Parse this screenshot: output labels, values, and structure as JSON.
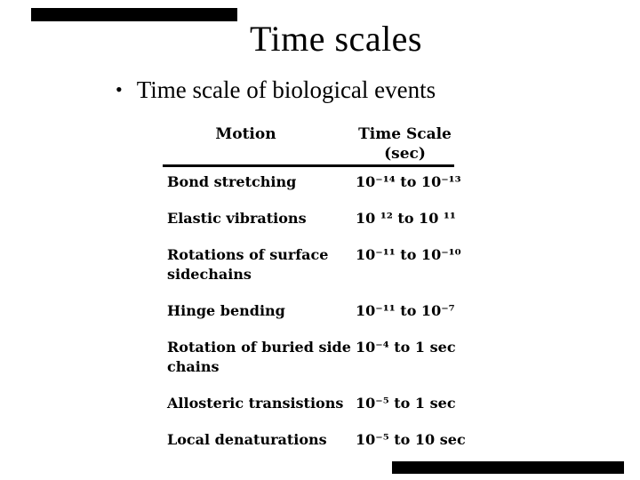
{
  "slide": {
    "title": "Time scales",
    "bullet_glyph": "•",
    "bullet_text": "Time scale of biological events"
  },
  "table": {
    "headers": {
      "motion": "Motion",
      "time_scale_line1": "Time Scale",
      "time_scale_line2": "(sec)"
    },
    "rows": [
      {
        "motion": "Bond stretching",
        "time": "10⁻¹⁴ to 10⁻¹³"
      },
      {
        "motion": "Elastic vibrations",
        "time": "10 ¹² to 10 ¹¹"
      },
      {
        "motion": "Rotations of surface sidechains",
        "time": "10⁻¹¹ to 10⁻¹⁰"
      },
      {
        "motion": "Hinge bending",
        "time": "10⁻¹¹ to 10⁻⁷"
      },
      {
        "motion": "Rotation of buried side chains",
        "time": "10⁻⁴ to 1 sec"
      },
      {
        "motion": "Allosteric transistions",
        "time": "10⁻⁵ to 1 sec"
      },
      {
        "motion": "Local denaturations",
        "time": "10⁻⁵ to 10 sec"
      }
    ]
  },
  "colors": {
    "background": "#ffffff",
    "text": "#000000",
    "redaction_bar": "#000000",
    "header_rule": "#000000"
  }
}
